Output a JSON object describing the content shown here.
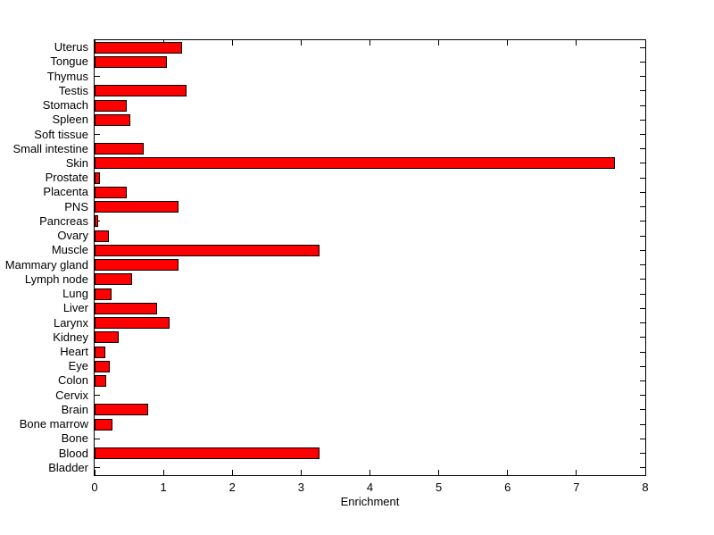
{
  "figure": {
    "background": "#ffffff",
    "axis_color": "#000000"
  },
  "chart_data": {
    "type": "bar",
    "orientation": "horizontal",
    "title": "",
    "xlabel": "Enrichment",
    "ylabel": "",
    "xlim": [
      0,
      8
    ],
    "xticks": [
      0,
      1,
      2,
      3,
      4,
      5,
      6,
      7,
      8
    ],
    "grid": false,
    "legend": "none",
    "bar_fill_color": "#ff0000",
    "bar_edge_color": "#000000",
    "categories": [
      "Uterus",
      "Tongue",
      "Thymus",
      "Testis",
      "Stomach",
      "Spleen",
      "Soft tissue",
      "Small intestine",
      "Skin",
      "Prostate",
      "Placenta",
      "PNS",
      "Pancreas",
      "Ovary",
      "Muscle",
      "Mammary gland",
      "Lymph node",
      "Lung",
      "Liver",
      "Larynx",
      "Kidney",
      "Heart",
      "Eye",
      "Colon",
      "Cervix",
      "Brain",
      "Bone marrow",
      "Bone",
      "Blood",
      "Bladder"
    ],
    "values": [
      1.26,
      1.04,
      0,
      1.32,
      0.45,
      0.51,
      0,
      0.7,
      7.55,
      0.07,
      0.45,
      1.2,
      0.04,
      0.19,
      3.26,
      1.21,
      0.53,
      0.23,
      0.9,
      1.08,
      0.34,
      0.14,
      0.21,
      0.16,
      0,
      0.76,
      0.25,
      0,
      3.26,
      0
    ]
  }
}
